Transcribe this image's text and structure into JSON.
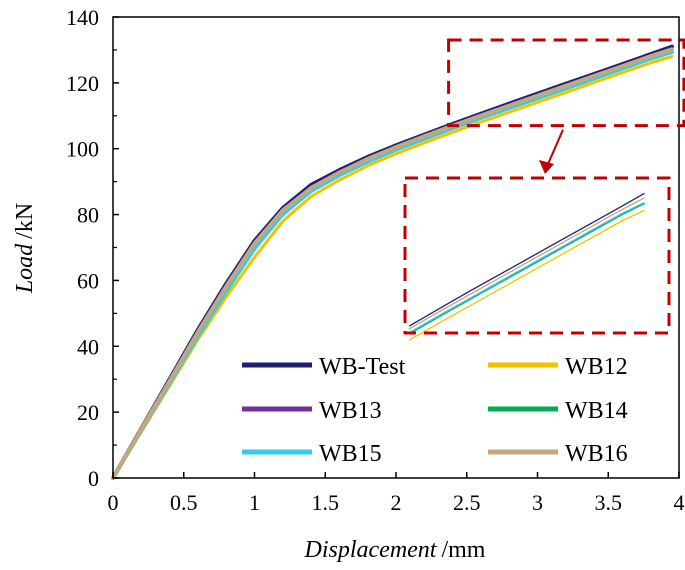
{
  "chart_data": {
    "type": "line",
    "xlabel": {
      "italic": "Displacement",
      "unit": "/mm"
    },
    "ylabel": {
      "italic": "Load",
      "unit": "/kN"
    },
    "xlim": [
      0,
      4
    ],
    "ylim": [
      0,
      140
    ],
    "xticks": [
      0,
      0.5,
      1,
      1.5,
      2,
      2.5,
      3,
      3.5,
      4
    ],
    "xtick_labels": [
      "0",
      "0.5",
      "1",
      "1.5",
      "2",
      "2.5",
      "3",
      "3.5",
      "4"
    ],
    "yticks": [
      0,
      20,
      40,
      60,
      80,
      100,
      120,
      140
    ],
    "ytick_labels": [
      "0",
      "20",
      "40",
      "60",
      "80",
      "100",
      "120",
      "140"
    ],
    "grid": false,
    "legend_position": "bottom-right, two columns",
    "zoom_region": {
      "x": [
        2.4,
        3.95
      ],
      "y": [
        107,
        133
      ]
    },
    "series": [
      {
        "name": "WB-Test",
        "color": "#1f1f7a",
        "x": [
          0,
          0.2,
          0.4,
          0.6,
          0.8,
          1.0,
          1.2,
          1.4,
          1.6,
          1.8,
          2.0,
          2.2,
          2.4,
          2.6,
          2.8,
          3.0,
          3.2,
          3.4,
          3.6,
          3.8,
          3.95
        ],
        "y": [
          0,
          15,
          30,
          45,
          59,
          72,
          82,
          89,
          93.5,
          97.5,
          101,
          104.3,
          107.5,
          110.6,
          113.7,
          116.7,
          119.7,
          122.7,
          125.7,
          128.7,
          131
        ]
      },
      {
        "name": "WB12",
        "color": "#f2c200",
        "x": [
          0,
          0.2,
          0.4,
          0.6,
          0.8,
          1.0,
          1.2,
          1.4,
          1.6,
          1.8,
          2.0,
          2.2,
          2.4,
          2.6,
          2.8,
          3.0,
          3.2,
          3.4,
          3.6,
          3.8,
          3.95
        ],
        "y": [
          0,
          14,
          28,
          42,
          55,
          67,
          78,
          85.5,
          90.5,
          94.8,
          98.5,
          101.8,
          105,
          108.1,
          111.1,
          114.1,
          117.1,
          120.1,
          123.1,
          126.1,
          128
        ]
      },
      {
        "name": "WB13",
        "color": "#7030a0",
        "x": [
          0,
          0.2,
          0.4,
          0.6,
          0.8,
          1.0,
          1.2,
          1.4,
          1.6,
          1.8,
          2.0,
          2.2,
          2.4,
          2.6,
          2.8,
          3.0,
          3.2,
          3.4,
          3.6,
          3.8,
          3.95
        ],
        "y": [
          0,
          14.6,
          29,
          43.5,
          57,
          70,
          80.5,
          87.3,
          92,
          96.1,
          99.8,
          103.1,
          106.3,
          109.4,
          112.4,
          115.4,
          118.4,
          121.4,
          124.4,
          127.4,
          129.3
        ]
      },
      {
        "name": "WB14",
        "color": "#00b050",
        "x": [
          0,
          0.2,
          0.4,
          0.6,
          0.8,
          1.0,
          1.2,
          1.4,
          1.6,
          1.8,
          2.0,
          2.2,
          2.4,
          2.6,
          2.8,
          3.0,
          3.2,
          3.4,
          3.6,
          3.8,
          3.95
        ],
        "y": [
          0,
          14.4,
          28.7,
          43,
          56.5,
          69.5,
          80,
          87,
          91.8,
          95.9,
          99.6,
          102.9,
          106.1,
          109.2,
          112.2,
          115.2,
          118.2,
          121.2,
          124.2,
          127.2,
          129.2
        ]
      },
      {
        "name": "WB15",
        "color": "#33ccee",
        "x": [
          0,
          0.2,
          0.4,
          0.6,
          0.8,
          1.0,
          1.2,
          1.4,
          1.6,
          1.8,
          2.0,
          2.2,
          2.4,
          2.6,
          2.8,
          3.0,
          3.2,
          3.4,
          3.6,
          3.8,
          3.95
        ],
        "y": [
          0,
          14.5,
          28.8,
          43.2,
          56.8,
          69.8,
          80.3,
          87.2,
          92,
          96.1,
          99.8,
          103.1,
          106.3,
          109.4,
          112.4,
          115.4,
          118.4,
          121.4,
          124.4,
          127.4,
          129.4
        ]
      },
      {
        "name": "WB16",
        "color": "#c4a87c",
        "x": [
          0,
          0.2,
          0.4,
          0.6,
          0.8,
          1.0,
          1.2,
          1.4,
          1.6,
          1.8,
          2.0,
          2.2,
          2.4,
          2.6,
          2.8,
          3.0,
          3.2,
          3.4,
          3.6,
          3.8,
          3.95
        ],
        "y": [
          0,
          14.8,
          29.5,
          44.3,
          58.2,
          71.2,
          81.3,
          88.1,
          92.8,
          96.9,
          100.5,
          103.8,
          107,
          110.1,
          113.1,
          116.1,
          119.1,
          122.1,
          125.1,
          128.1,
          130.2
        ]
      }
    ]
  }
}
